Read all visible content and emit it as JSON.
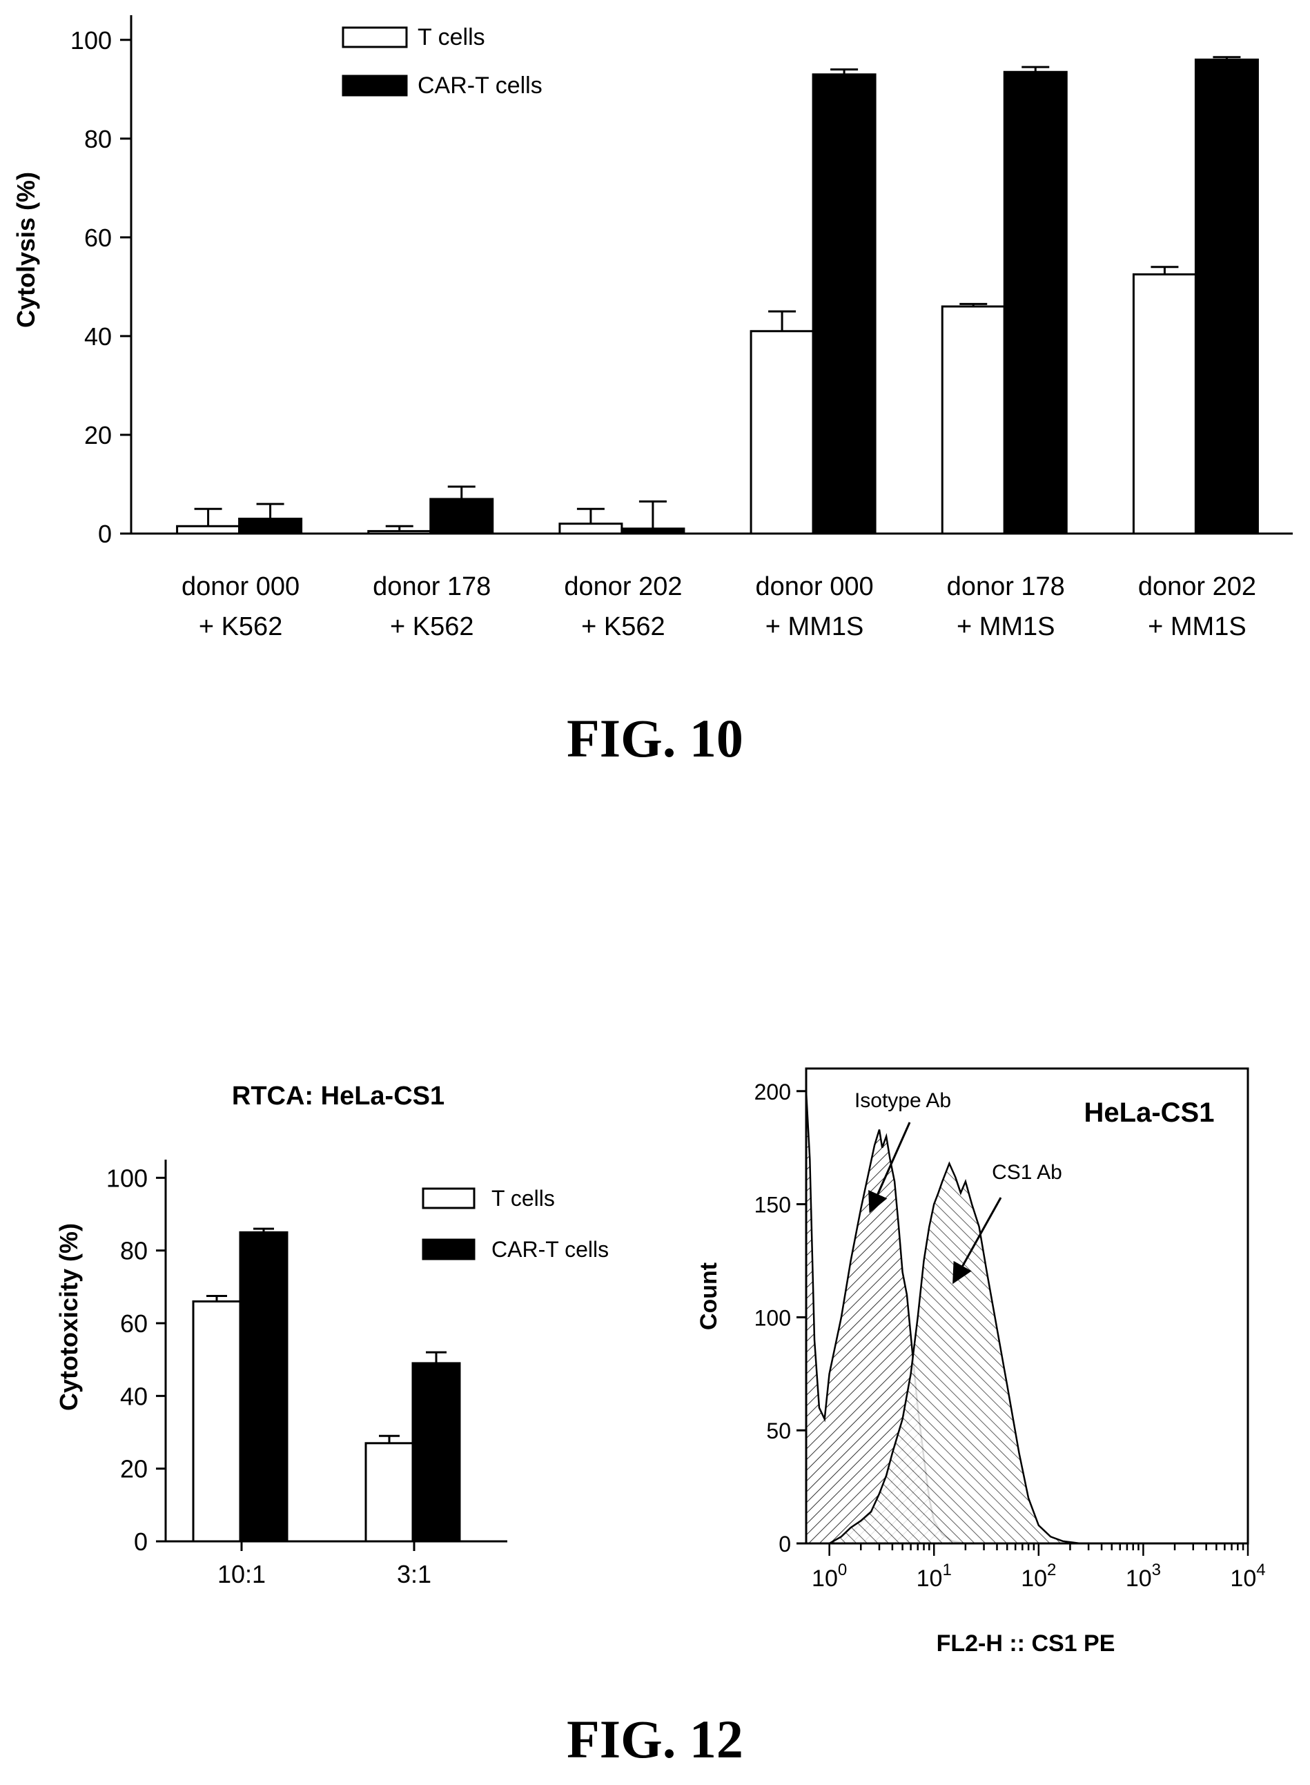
{
  "figures": {
    "fig10_caption": "FIG. 10",
    "fig12_caption": "FIG. 12"
  },
  "chart_data": [
    {
      "id": "fig10",
      "type": "bar",
      "title": "",
      "ylabel": "Cytolysis (%)",
      "xlabel": "",
      "ylim": [
        0,
        105
      ],
      "yticks": [
        0,
        20,
        40,
        60,
        80,
        100
      ],
      "categories": [
        [
          "donor 000",
          "+ K562"
        ],
        [
          "donor 178",
          "+ K562"
        ],
        [
          "donor 202",
          "+ K562"
        ],
        [
          "donor 000",
          "+ MM1S"
        ],
        [
          "donor 178",
          "+ MM1S"
        ],
        [
          "donor 202",
          "+ MM1S"
        ]
      ],
      "series": [
        {
          "name": "T cells",
          "fill": "#ffffff",
          "values": [
            1.5,
            0.5,
            2,
            41,
            46,
            52.5
          ],
          "errors": [
            3.5,
            1,
            3,
            4,
            0.5,
            1.5
          ]
        },
        {
          "name": "CAR-T cells",
          "fill": "#000000",
          "values": [
            3,
            7,
            1,
            93,
            93.5,
            96
          ],
          "errors": [
            3,
            2.5,
            5.5,
            1,
            1,
            0.5
          ]
        }
      ],
      "legend": "top-center",
      "grid": false
    },
    {
      "id": "fig12a",
      "type": "bar",
      "title": "RTCA: HeLa-CS1",
      "ylabel": "Cytotoxicity (%)",
      "xlabel": "",
      "ylim": [
        0,
        105
      ],
      "yticks": [
        0,
        20,
        40,
        60,
        80,
        100
      ],
      "categories": [
        "10:1",
        "3:1"
      ],
      "series": [
        {
          "name": "T cells",
          "fill": "#ffffff",
          "values": [
            66,
            27
          ],
          "errors": [
            1.5,
            2
          ]
        },
        {
          "name": "CAR-T cells",
          "fill": "#000000",
          "values": [
            85,
            49
          ],
          "errors": [
            1,
            3
          ]
        }
      ],
      "legend": "top-right",
      "grid": false
    },
    {
      "id": "fig12b",
      "type": "area",
      "title": "HeLa-CS1",
      "ylabel": "Count",
      "xlabel": "FL2-H :: CS1 PE",
      "xscale": "log",
      "xlim": [
        0.6,
        10000
      ],
      "ylim": [
        0,
        210
      ],
      "yticks": [
        0,
        50,
        100,
        150,
        200
      ],
      "xticks": [
        {
          "value": 1,
          "base": "10",
          "exp": "0"
        },
        {
          "value": 10,
          "base": "10",
          "exp": "1"
        },
        {
          "value": 100,
          "base": "10",
          "exp": "2"
        },
        {
          "value": 1000,
          "base": "10",
          "exp": "3"
        },
        {
          "value": 10000,
          "base": "10",
          "exp": "4"
        }
      ],
      "series": [
        {
          "name": "Isotype Ab",
          "x": [
            0.6,
            0.65,
            0.72,
            0.8,
            0.9,
            1.0,
            1.3,
            1.6,
            2.0,
            2.4,
            2.7,
            3.0,
            3.2,
            3.5,
            3.8,
            4.2,
            4.6,
            5.0,
            5.5,
            6.2,
            7.0,
            8.0,
            9.0,
            10,
            12,
            15,
            20
          ],
          "y": [
            200,
            170,
            90,
            60,
            55,
            75,
            100,
            125,
            148,
            165,
            176,
            183,
            175,
            180,
            170,
            160,
            140,
            120,
            110,
            85,
            60,
            38,
            20,
            10,
            4,
            1,
            0
          ]
        },
        {
          "name": "CS1 Ab",
          "x": [
            1.0,
            1.3,
            1.6,
            2.0,
            2.5,
            3.0,
            3.5,
            4.0,
            5.0,
            6.0,
            7.0,
            8.0,
            9.0,
            10,
            11,
            12,
            14,
            16,
            18,
            20,
            23,
            27,
            32,
            40,
            50,
            65,
            80,
            100,
            130,
            170,
            250
          ],
          "y": [
            0,
            3,
            7,
            10,
            14,
            22,
            30,
            40,
            55,
            75,
            100,
            125,
            140,
            150,
            155,
            160,
            168,
            162,
            155,
            160,
            150,
            140,
            120,
            95,
            70,
            40,
            20,
            8,
            3,
            1,
            0
          ]
        }
      ],
      "annotations": [
        "Isotype Ab",
        "CS1 Ab"
      ],
      "grid": false
    }
  ]
}
